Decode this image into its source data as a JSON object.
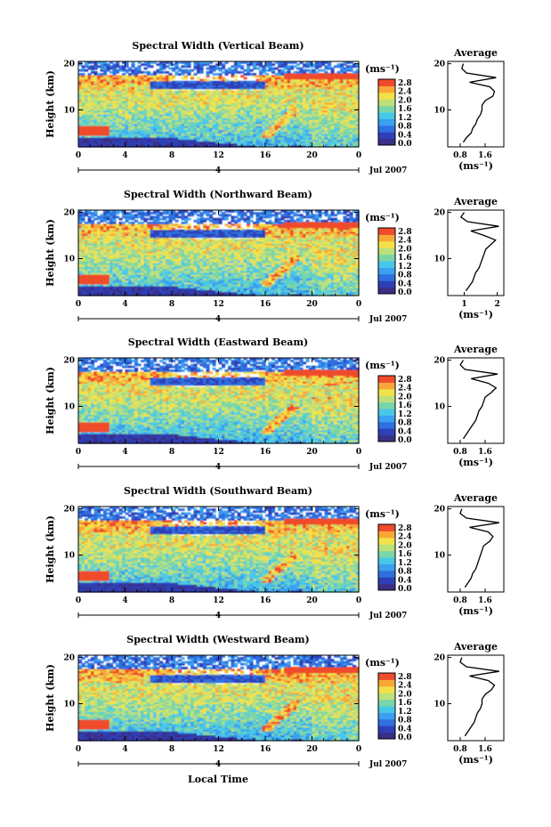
{
  "figure": {
    "xlabel": "Local Time",
    "date_label": "Jul 2007",
    "day_label": "4",
    "unit_label": "(ms⁻¹)",
    "avg_title": "Average",
    "colorbar_colors": [
      "#3a2f86",
      "#2f3fb8",
      "#2f6fe0",
      "#3aa0ef",
      "#48c8e8",
      "#7ad6a8",
      "#bde07a",
      "#f2e24a",
      "#f8a838",
      "#ef4b2c"
    ]
  },
  "chart_data": [
    {
      "type": "heatmap",
      "title": "Spectral Width (Vertical Beam)",
      "ylabel": "Height (km)",
      "x_ticks": [
        "0",
        "4",
        "8",
        "12",
        "16",
        "20",
        "0"
      ],
      "y_ticks": [
        "10",
        "20"
      ],
      "xlim": [
        0,
        24
      ],
      "ylim": [
        2,
        20.5
      ],
      "colorbar_ticks": [
        "0.0",
        "0.4",
        "0.8",
        "1.2",
        "1.6",
        "2.0",
        "2.4",
        "2.8"
      ],
      "avg_xticks": [
        "0.8",
        "1.6"
      ],
      "avg_xlim": [
        0.4,
        2.2
      ],
      "average_profile": {
        "height_km": [
          3,
          4,
          5,
          6,
          7,
          8,
          9,
          10,
          11,
          12,
          13,
          14,
          15,
          16,
          17,
          18,
          19,
          20
        ],
        "width": [
          0.9,
          1.0,
          1.15,
          1.2,
          1.3,
          1.35,
          1.45,
          1.5,
          1.5,
          1.6,
          1.85,
          1.9,
          1.75,
          1.1,
          1.95,
          1.0,
          0.85,
          0.9
        ]
      }
    },
    {
      "type": "heatmap",
      "title": "Spectral Width (Northward Beam)",
      "ylabel": "Height (km)",
      "x_ticks": [
        "0",
        "4",
        "8",
        "12",
        "16",
        "20",
        "0"
      ],
      "y_ticks": [
        "10",
        "20"
      ],
      "xlim": [
        0,
        24
      ],
      "ylim": [
        2,
        20.5
      ],
      "colorbar_ticks": [
        "0.0",
        "0.4",
        "0.8",
        "1.2",
        "1.6",
        "2.0",
        "2.4",
        "2.8"
      ],
      "avg_xticks": [
        "1",
        "2"
      ],
      "avg_xlim": [
        0.5,
        2.2
      ],
      "average_profile": {
        "height_km": [
          3,
          4,
          5,
          6,
          7,
          8,
          9,
          10,
          11,
          12,
          13,
          14,
          15,
          16,
          17,
          18,
          19,
          20
        ],
        "width": [
          1.05,
          1.15,
          1.25,
          1.3,
          1.35,
          1.45,
          1.5,
          1.55,
          1.6,
          1.65,
          1.8,
          1.95,
          1.6,
          1.2,
          2.05,
          1.1,
          0.9,
          1.0
        ]
      }
    },
    {
      "type": "heatmap",
      "title": "Spectral Width (Eastward Beam)",
      "ylabel": "Height (km)",
      "x_ticks": [
        "0",
        "4",
        "8",
        "12",
        "16",
        "20",
        "0"
      ],
      "y_ticks": [
        "10",
        "20"
      ],
      "xlim": [
        0,
        24
      ],
      "ylim": [
        2,
        20.5
      ],
      "colorbar_ticks": [
        "0.0",
        "0.4",
        "0.8",
        "1.2",
        "1.6",
        "2.0",
        "2.4",
        "2.8"
      ],
      "avg_xticks": [
        "0.8",
        "1.6"
      ],
      "avg_xlim": [
        0.4,
        2.2
      ],
      "average_profile": {
        "height_km": [
          3,
          4,
          5,
          6,
          7,
          8,
          9,
          10,
          11,
          12,
          13,
          14,
          15,
          16,
          17,
          18,
          19,
          20
        ],
        "width": [
          0.9,
          1.0,
          1.1,
          1.2,
          1.3,
          1.35,
          1.4,
          1.5,
          1.55,
          1.6,
          1.8,
          1.95,
          1.7,
          1.15,
          2.0,
          0.95,
          0.8,
          0.9
        ]
      }
    },
    {
      "type": "heatmap",
      "title": "Spectral Width (Southward Beam)",
      "ylabel": "Height (km)",
      "x_ticks": [
        "0",
        "4",
        "8",
        "12",
        "16",
        "20",
        "0"
      ],
      "y_ticks": [
        "10",
        "20"
      ],
      "xlim": [
        0,
        24
      ],
      "ylim": [
        2,
        20.5
      ],
      "colorbar_ticks": [
        "0.0",
        "0.4",
        "0.8",
        "1.2",
        "1.6",
        "2.0",
        "2.4",
        "2.8"
      ],
      "avg_xticks": [
        "0.8",
        "1.6"
      ],
      "avg_xlim": [
        0.4,
        2.2
      ],
      "average_profile": {
        "height_km": [
          3,
          4,
          5,
          6,
          7,
          8,
          9,
          10,
          11,
          12,
          13,
          14,
          15,
          16,
          17,
          18,
          19,
          20
        ],
        "width": [
          0.95,
          1.05,
          1.15,
          1.2,
          1.3,
          1.35,
          1.4,
          1.45,
          1.5,
          1.55,
          1.75,
          1.85,
          1.7,
          1.1,
          2.05,
          1.0,
          0.8,
          0.85
        ]
      }
    },
    {
      "type": "heatmap",
      "title": "Spectral Width (Westward Beam)",
      "ylabel": "Height (km)",
      "x_ticks": [
        "0",
        "4",
        "8",
        "12",
        "16",
        "20",
        "0"
      ],
      "y_ticks": [
        "10",
        "20"
      ],
      "xlim": [
        0,
        24
      ],
      "ylim": [
        2,
        20.5
      ],
      "colorbar_ticks": [
        "0.0",
        "0.4",
        "0.8",
        "1.2",
        "1.6",
        "2.0",
        "2.4",
        "2.8"
      ],
      "avg_xticks": [
        "0.8",
        "1.6"
      ],
      "avg_xlim": [
        0.4,
        2.2
      ],
      "average_profile": {
        "height_km": [
          3,
          4,
          5,
          6,
          7,
          8,
          9,
          10,
          11,
          12,
          13,
          14,
          15,
          16,
          17,
          18,
          19,
          20
        ],
        "width": [
          0.95,
          1.05,
          1.15,
          1.25,
          1.3,
          1.35,
          1.45,
          1.5,
          1.5,
          1.6,
          1.8,
          1.9,
          1.7,
          1.1,
          2.05,
          1.0,
          0.8,
          0.85
        ]
      }
    }
  ]
}
